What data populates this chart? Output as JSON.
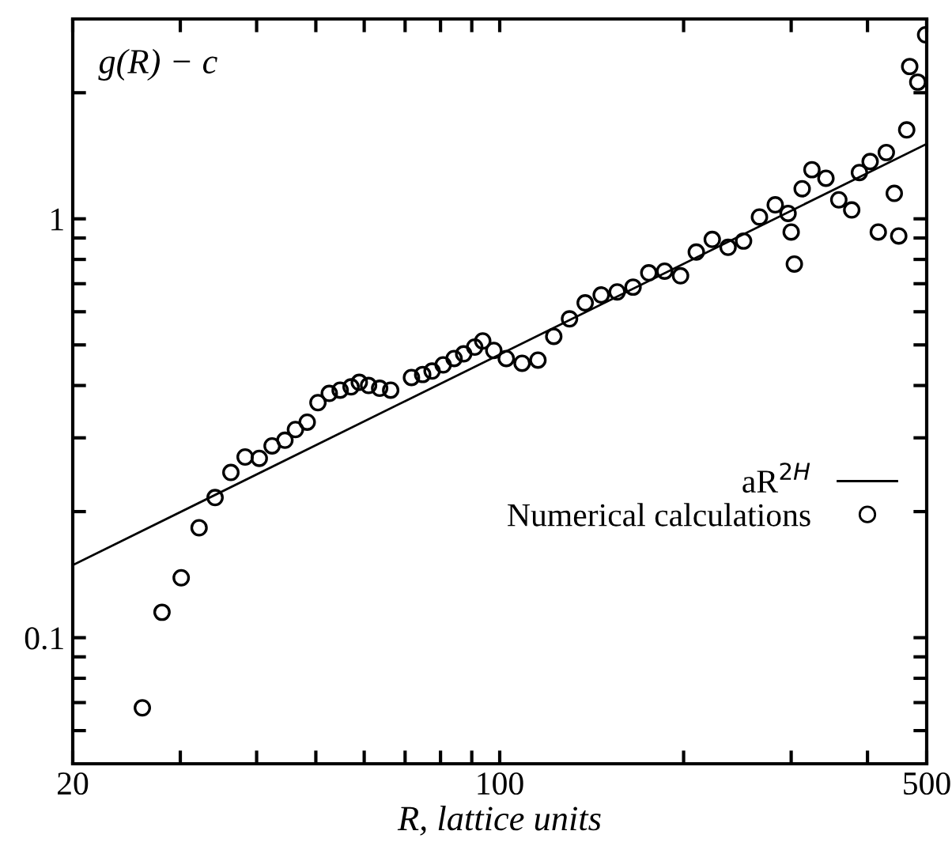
{
  "chart_data": {
    "type": "scatter",
    "xlabel": "R, lattice units",
    "ylabel": "g(R) − c",
    "log": "xy",
    "xlim": [
      20,
      500
    ],
    "ylim": [
      0.05,
      3
    ],
    "xticks": [
      20,
      {
        "value": 30,
        "label": null
      },
      {
        "value": 40,
        "label": null
      },
      {
        "value": 50,
        "label": null
      },
      {
        "value": 60,
        "label": null
      },
      {
        "value": 70,
        "label": null
      },
      {
        "value": 80,
        "label": null
      },
      {
        "value": 90,
        "label": null
      },
      100,
      {
        "value": 200,
        "label": null
      },
      {
        "value": 300,
        "label": null
      },
      {
        "value": 400,
        "label": null
      },
      500
    ],
    "yticks": [
      {
        "value": 0.06,
        "label": null
      },
      {
        "value": 0.07,
        "label": null
      },
      {
        "value": 0.08,
        "label": null
      },
      {
        "value": 0.09,
        "label": null
      },
      0.1,
      {
        "value": 0.2,
        "label": null
      },
      {
        "value": 0.3,
        "label": null
      },
      {
        "value": 0.4,
        "label": null
      },
      {
        "value": 0.5,
        "label": null
      },
      {
        "value": 0.6,
        "label": null
      },
      {
        "value": 0.7,
        "label": null
      },
      {
        "value": 0.8,
        "label": null
      },
      {
        "value": 0.9,
        "label": null
      },
      1,
      {
        "value": 2,
        "label": null
      }
    ],
    "grid": false,
    "legend": "center right",
    "series": [
      {
        "name": "aR$^{2H}$",
        "type": "line",
        "color": "#000000",
        "marker": "none",
        "line_style": "solid",
        "x": [
          20,
          500
        ],
        "values": [
          0.149,
          1.51
        ]
      },
      {
        "name": "Numerical calculations",
        "color": "#000000",
        "marker": "circle",
        "x": [
          26.0,
          28.0,
          30.1,
          32.2,
          34.2,
          36.3,
          38.3,
          40.4,
          42.4,
          44.5,
          46.3,
          48.4,
          50.4,
          52.6,
          54.8,
          57.1,
          58.9,
          61.0,
          63.6,
          66.3,
          71.7,
          74.8,
          77.5,
          80.8,
          84.2,
          87.3,
          91.0,
          93.8,
          97.8,
          102.5,
          108.8,
          115.5,
          122.6,
          130.1,
          138,
          146.6,
          155.7,
          165.3,
          175.4,
          186.2,
          197.7,
          209.8,
          222.8,
          236.5,
          250.7,
          266.2,
          282.5,
          296.5,
          300,
          303.6,
          312.7,
          324.4,
          342,
          359,
          376.9,
          388,
          404,
          416.6,
          429.4,
          442.5,
          450,
          463.7,
          469,
          483.5,
          498
        ],
        "values": [
          0.068,
          0.115,
          0.139,
          0.183,
          0.216,
          0.248,
          0.27,
          0.268,
          0.287,
          0.296,
          0.314,
          0.327,
          0.364,
          0.383,
          0.39,
          0.397,
          0.407,
          0.4,
          0.394,
          0.39,
          0.418,
          0.425,
          0.433,
          0.448,
          0.464,
          0.476,
          0.494,
          0.511,
          0.485,
          0.464,
          0.452,
          0.46,
          0.524,
          0.577,
          0.63,
          0.658,
          0.669,
          0.687,
          0.743,
          0.75,
          0.731,
          0.833,
          0.893,
          0.855,
          0.885,
          1.01,
          1.08,
          1.03,
          0.93,
          0.78,
          1.18,
          1.31,
          1.25,
          1.11,
          1.05,
          1.29,
          1.37,
          0.93,
          1.44,
          1.15,
          0.91,
          1.63,
          2.31,
          2.12,
          2.75
        ]
      }
    ]
  }
}
